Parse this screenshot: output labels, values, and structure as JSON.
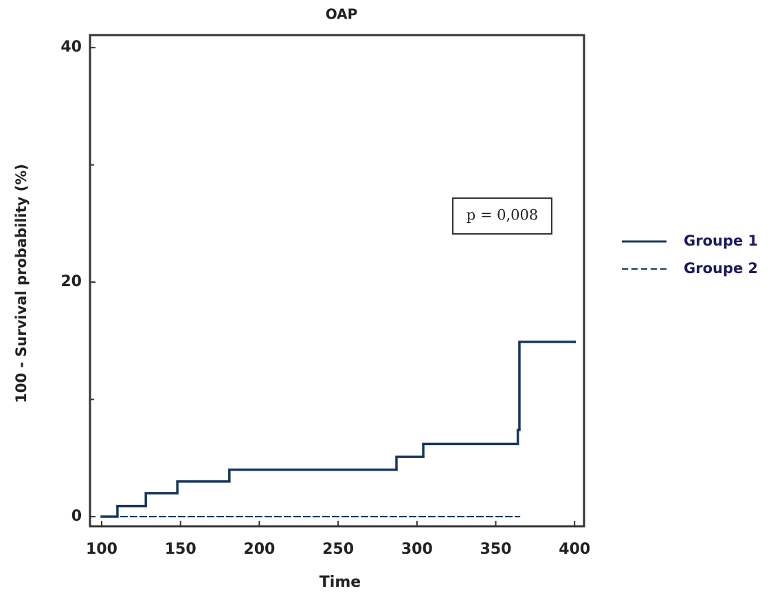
{
  "chart_data": {
    "type": "step",
    "title": "OAP",
    "xlabel": "Time",
    "ylabel": "100 - Survival probability (%)",
    "annotation": "p = 0,008",
    "xlim": [
      92.6,
      406
    ],
    "ylim": [
      -0.82,
      41.07
    ],
    "xticks": [
      100,
      150,
      200,
      250,
      300,
      350,
      400
    ],
    "yticks": [
      0,
      20,
      40
    ],
    "yminorticks": [
      10,
      30
    ],
    "legend": "right",
    "series": [
      {
        "name": "Groupe 1",
        "color": "#17375e",
        "dash": false,
        "x": [
          100,
          110,
          128,
          148,
          181,
          287,
          304,
          364,
          365,
          400
        ],
        "values": [
          0,
          0.9,
          2,
          3,
          4,
          5.1,
          6.2,
          7.4,
          14.9,
          14.9
        ]
      },
      {
        "name": "Groupe 2",
        "color": "#17375e",
        "dash": true,
        "x": [
          100,
          365
        ],
        "values": [
          0,
          0
        ]
      }
    ]
  }
}
